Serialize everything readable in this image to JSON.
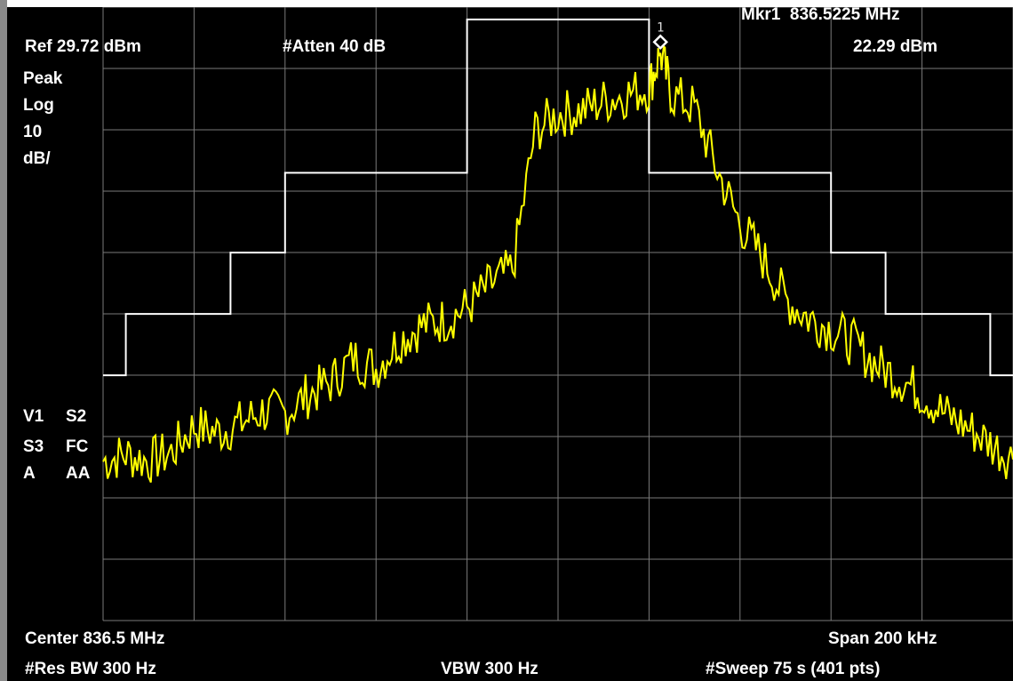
{
  "header": {
    "marker_label": "Mkr1",
    "marker_freq": "836.5225 MHz",
    "ref_level": "Ref 29.72 dBm",
    "attenuation": "#Atten 40 dB",
    "marker_amplitude": "22.29 dBm"
  },
  "left_panel": {
    "detector": "Peak",
    "scale_type": "Log",
    "scale_value": "10",
    "scale_unit": "dB/",
    "flags_row1": [
      "V1",
      "S2"
    ],
    "flags_row2": [
      "S3",
      "FC"
    ],
    "flags_row3": [
      "A",
      "AA"
    ]
  },
  "footer": {
    "center": "Center 836.5 MHz",
    "span": "Span 200 kHz",
    "rbw": "#Res BW 300 Hz",
    "vbw": "VBW 300 Hz",
    "sweep": "#Sweep 75 s (401 pts)"
  },
  "marker": {
    "number": "1",
    "freq_mhz": 836.5225,
    "level_dbm": 22.29
  },
  "colors": {
    "trace": "#ffff00",
    "mask": "#ffffff",
    "grid": "#7a7a7a",
    "background": "#000000"
  },
  "chart_data": {
    "type": "line",
    "x_range_mhz": [
      836.4,
      836.6
    ],
    "y_range_dbm": [
      -70.28,
      29.72
    ],
    "grid": true,
    "series": [
      {
        "x_mhz": [
          836.4,
          836.405,
          836.41,
          836.415,
          836.42,
          836.425,
          836.43,
          836.435,
          836.44,
          836.445,
          836.45,
          836.455,
          836.46,
          836.465,
          836.47,
          836.475,
          836.48,
          836.485,
          836.49,
          836.495,
          836.5,
          836.505,
          836.51,
          836.515,
          836.52,
          836.5225,
          836.525,
          836.53,
          836.535,
          836.54,
          836.545,
          836.55,
          836.555,
          836.56,
          836.565,
          836.57,
          836.575,
          836.58,
          836.585,
          836.59,
          836.595,
          836.6
        ],
        "y_dbm": [
          -44.3,
          -43.2,
          -44.3,
          -42.9,
          -38.6,
          -39.6,
          -38.2,
          -36.2,
          -36.5,
          -33.5,
          -31.5,
          -27.5,
          -29.2,
          -24.6,
          -22.2,
          -21.3,
          -19.3,
          -15.7,
          -13.0,
          9.6,
          12.3,
          12.8,
          14.4,
          15.5,
          16.6,
          22.3,
          15.4,
          13.3,
          3.0,
          -5.6,
          -11.2,
          -17.9,
          -20.9,
          -22.7,
          -25.1,
          -28.6,
          -30.8,
          -33.2,
          -36.6,
          -38.8,
          -41.4,
          -44.0
        ]
      },
      {
        "x_mhz": [
          836.4,
          836.405,
          836.405,
          836.428,
          836.428,
          836.44,
          836.44,
          836.48,
          836.48,
          836.52,
          836.52,
          836.56,
          836.56,
          836.572,
          836.572,
          836.595,
          836.595,
          836.6
        ],
        "y_dbm": [
          -30.3,
          -30.3,
          -20.3,
          -20.3,
          -10.3,
          -10.3,
          2.7,
          2.7,
          27.7,
          27.7,
          2.7,
          2.7,
          -10.3,
          -10.3,
          -20.3,
          -20.3,
          -30.3,
          -30.3
        ]
      }
    ]
  }
}
